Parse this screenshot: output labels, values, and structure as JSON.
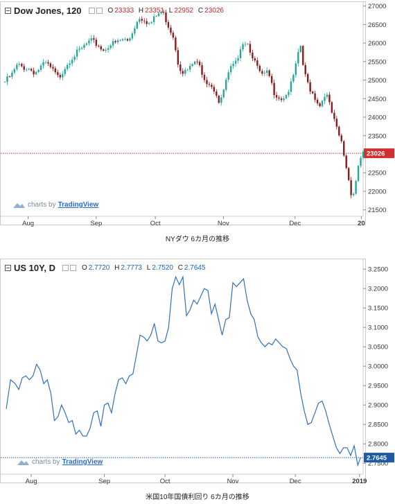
{
  "charts": [
    {
      "symbol": "Dow Jones, 120",
      "ohlc": {
        "o_label": "O",
        "o": "23333",
        "h_label": "H",
        "h": "23351",
        "l_label": "L",
        "l": "22952",
        "c_label": "C",
        "c": "23026"
      },
      "ohlc_color": "#c62828",
      "watermark": {
        "prefix": "charts by",
        "brand": "TradingView"
      },
      "caption": "NYダウ 6カ月の推移"
    },
    {
      "symbol": "US 10Y, D",
      "ohlc": {
        "o_label": "O",
        "o": "2.7720",
        "h_label": "H",
        "h": "2.7773",
        "l_label": "L",
        "l": "2.7520",
        "c_label": "C",
        "c": "2.7645"
      },
      "ohlc_color": "#1565c0",
      "watermark": {
        "prefix": "charts by",
        "brand": "TradingView"
      },
      "caption": "米国10年国債利回り 6カ月の推移"
    }
  ],
  "chart_data": [
    {
      "type": "candlestick",
      "title": "Dow Jones, 120",
      "ylim": [
        21400,
        27200
      ],
      "yticks": [
        "27000",
        "26500",
        "26000",
        "25500",
        "25000",
        "24500",
        "24000",
        "23500",
        "23000",
        "22500",
        "22000",
        "21500"
      ],
      "ytick_values": [
        27000,
        26500,
        26000,
        25500,
        25000,
        24500,
        24000,
        23500,
        23000,
        22500,
        22000,
        21500
      ],
      "xticks": [
        "Aug",
        "Sep",
        "Oct",
        "Nov",
        "Dec",
        "20"
      ],
      "xtick_positions": [
        0.065,
        0.255,
        0.42,
        0.61,
        0.81,
        0.995
      ],
      "last_price": 23026,
      "last_price_label": "23026",
      "up_color": "#26a69a",
      "down_color": "#8b1a1a",
      "series": [
        {
          "t": 0.0,
          "v": 24950
        },
        {
          "t": 0.02,
          "v": 25150
        },
        {
          "t": 0.035,
          "v": 25400
        },
        {
          "t": 0.05,
          "v": 25350
        },
        {
          "t": 0.07,
          "v": 25300
        },
        {
          "t": 0.085,
          "v": 25200
        },
        {
          "t": 0.1,
          "v": 25350
        },
        {
          "t": 0.115,
          "v": 25450
        },
        {
          "t": 0.13,
          "v": 25300
        },
        {
          "t": 0.15,
          "v": 25050
        },
        {
          "t": 0.17,
          "v": 25400
        },
        {
          "t": 0.19,
          "v": 25650
        },
        {
          "t": 0.21,
          "v": 25800
        },
        {
          "t": 0.225,
          "v": 25950
        },
        {
          "t": 0.24,
          "v": 26050
        },
        {
          "t": 0.26,
          "v": 25950
        },
        {
          "t": 0.275,
          "v": 25800
        },
        {
          "t": 0.29,
          "v": 25950
        },
        {
          "t": 0.31,
          "v": 26000
        },
        {
          "t": 0.33,
          "v": 26100
        },
        {
          "t": 0.345,
          "v": 26050
        },
        {
          "t": 0.36,
          "v": 26400
        },
        {
          "t": 0.375,
          "v": 26700
        },
        {
          "t": 0.39,
          "v": 26650
        },
        {
          "t": 0.405,
          "v": 26500
        },
        {
          "t": 0.42,
          "v": 26700
        },
        {
          "t": 0.435,
          "v": 26850
        },
        {
          "t": 0.445,
          "v": 26750
        },
        {
          "t": 0.455,
          "v": 26500
        },
        {
          "t": 0.47,
          "v": 26200
        },
        {
          "t": 0.485,
          "v": 25400
        },
        {
          "t": 0.5,
          "v": 25200
        },
        {
          "t": 0.515,
          "v": 25300
        },
        {
          "t": 0.53,
          "v": 25500
        },
        {
          "t": 0.545,
          "v": 25350
        },
        {
          "t": 0.56,
          "v": 25000
        },
        {
          "t": 0.575,
          "v": 24900
        },
        {
          "t": 0.59,
          "v": 24650
        },
        {
          "t": 0.6,
          "v": 24300
        },
        {
          "t": 0.615,
          "v": 24900
        },
        {
          "t": 0.63,
          "v": 25300
        },
        {
          "t": 0.645,
          "v": 25450
        },
        {
          "t": 0.66,
          "v": 26000
        },
        {
          "t": 0.675,
          "v": 26050
        },
        {
          "t": 0.69,
          "v": 25700
        },
        {
          "t": 0.705,
          "v": 25300
        },
        {
          "t": 0.72,
          "v": 25100
        },
        {
          "t": 0.735,
          "v": 25200
        },
        {
          "t": 0.75,
          "v": 24700
        },
        {
          "t": 0.77,
          "v": 24500
        },
        {
          "t": 0.785,
          "v": 24600
        },
        {
          "t": 0.8,
          "v": 24900
        },
        {
          "t": 0.815,
          "v": 25500
        },
        {
          "t": 0.825,
          "v": 25950
        },
        {
          "t": 0.835,
          "v": 25200
        },
        {
          "t": 0.85,
          "v": 24800
        },
        {
          "t": 0.865,
          "v": 24550
        },
        {
          "t": 0.88,
          "v": 24300
        },
        {
          "t": 0.895,
          "v": 24700
        },
        {
          "t": 0.91,
          "v": 24200
        },
        {
          "t": 0.925,
          "v": 23700
        },
        {
          "t": 0.94,
          "v": 23300
        },
        {
          "t": 0.95,
          "v": 22800
        },
        {
          "t": 0.96,
          "v": 22300
        },
        {
          "t": 0.97,
          "v": 21800
        },
        {
          "t": 0.98,
          "v": 22300
        },
        {
          "t": 0.99,
          "v": 22900
        },
        {
          "t": 1.0,
          "v": 23026
        }
      ]
    },
    {
      "type": "line",
      "title": "US 10Y, D",
      "ylim": [
        2.72,
        3.27
      ],
      "yticks": [
        "3.2500",
        "3.2000",
        "3.1500",
        "3.1000",
        "3.0500",
        "3.0000",
        "2.9500",
        "2.9000",
        "2.8500",
        "2.8000",
        "2.7500"
      ],
      "ytick_values": [
        3.25,
        3.2,
        3.15,
        3.1,
        3.05,
        3.0,
        2.95,
        2.9,
        2.85,
        2.8,
        2.75
      ],
      "xticks": [
        "Aug",
        "Sep",
        "Oct",
        "Nov",
        "Dec",
        "2019"
      ],
      "xtick_positions": [
        0.07,
        0.275,
        0.445,
        0.635,
        0.81,
        0.99
      ],
      "last_price": 2.7645,
      "last_price_label": "2.7645",
      "line_color": "#2f6fc0",
      "series": [
        {
          "t": 0.0,
          "v": 2.89
        },
        {
          "t": 0.012,
          "v": 2.965
        },
        {
          "t": 0.025,
          "v": 2.955
        },
        {
          "t": 0.035,
          "v": 2.94
        },
        {
          "t": 0.045,
          "v": 2.97
        },
        {
          "t": 0.055,
          "v": 2.975
        },
        {
          "t": 0.065,
          "v": 2.965
        },
        {
          "t": 0.075,
          "v": 2.975
        },
        {
          "t": 0.085,
          "v": 3.005
        },
        {
          "t": 0.095,
          "v": 2.99
        },
        {
          "t": 0.105,
          "v": 2.955
        },
        {
          "t": 0.115,
          "v": 2.965
        },
        {
          "t": 0.125,
          "v": 2.93
        },
        {
          "t": 0.135,
          "v": 2.86
        },
        {
          "t": 0.145,
          "v": 2.87
        },
        {
          "t": 0.155,
          "v": 2.9
        },
        {
          "t": 0.165,
          "v": 2.88
        },
        {
          "t": 0.175,
          "v": 2.855
        },
        {
          "t": 0.185,
          "v": 2.86
        },
        {
          "t": 0.195,
          "v": 2.825
        },
        {
          "t": 0.205,
          "v": 2.835
        },
        {
          "t": 0.215,
          "v": 2.82
        },
        {
          "t": 0.225,
          "v": 2.82
        },
        {
          "t": 0.235,
          "v": 2.84
        },
        {
          "t": 0.245,
          "v": 2.88
        },
        {
          "t": 0.255,
          "v": 2.885
        },
        {
          "t": 0.265,
          "v": 2.845
        },
        {
          "t": 0.275,
          "v": 2.9
        },
        {
          "t": 0.285,
          "v": 2.905
        },
        {
          "t": 0.295,
          "v": 2.88
        },
        {
          "t": 0.305,
          "v": 2.93
        },
        {
          "t": 0.315,
          "v": 2.965
        },
        {
          "t": 0.325,
          "v": 2.97
        },
        {
          "t": 0.335,
          "v": 2.955
        },
        {
          "t": 0.345,
          "v": 2.975
        },
        {
          "t": 0.355,
          "v": 2.98
        },
        {
          "t": 0.365,
          "v": 3.03
        },
        {
          "t": 0.375,
          "v": 3.08
        },
        {
          "t": 0.385,
          "v": 3.075
        },
        {
          "t": 0.395,
          "v": 3.065
        },
        {
          "t": 0.405,
          "v": 3.08
        },
        {
          "t": 0.415,
          "v": 3.11
        },
        {
          "t": 0.425,
          "v": 3.065
        },
        {
          "t": 0.435,
          "v": 3.06
        },
        {
          "t": 0.445,
          "v": 3.065
        },
        {
          "t": 0.455,
          "v": 3.1
        },
        {
          "t": 0.465,
          "v": 3.2
        },
        {
          "t": 0.475,
          "v": 3.23
        },
        {
          "t": 0.485,
          "v": 3.21
        },
        {
          "t": 0.495,
          "v": 3.23
        },
        {
          "t": 0.505,
          "v": 3.13
        },
        {
          "t": 0.515,
          "v": 3.145
        },
        {
          "t": 0.525,
          "v": 3.17
        },
        {
          "t": 0.535,
          "v": 3.16
        },
        {
          "t": 0.545,
          "v": 3.18
        },
        {
          "t": 0.555,
          "v": 3.2
        },
        {
          "t": 0.565,
          "v": 3.195
        },
        {
          "t": 0.575,
          "v": 3.135
        },
        {
          "t": 0.585,
          "v": 3.16
        },
        {
          "t": 0.595,
          "v": 3.12
        },
        {
          "t": 0.605,
          "v": 3.08
        },
        {
          "t": 0.615,
          "v": 3.12
        },
        {
          "t": 0.625,
          "v": 3.125
        },
        {
          "t": 0.635,
          "v": 3.215
        },
        {
          "t": 0.645,
          "v": 3.205
        },
        {
          "t": 0.655,
          "v": 3.215
        },
        {
          "t": 0.665,
          "v": 3.225
        },
        {
          "t": 0.675,
          "v": 3.17
        },
        {
          "t": 0.685,
          "v": 3.135
        },
        {
          "t": 0.695,
          "v": 3.12
        },
        {
          "t": 0.705,
          "v": 3.075
        },
        {
          "t": 0.715,
          "v": 3.06
        },
        {
          "t": 0.725,
          "v": 3.05
        },
        {
          "t": 0.735,
          "v": 3.06
        },
        {
          "t": 0.745,
          "v": 3.055
        },
        {
          "t": 0.755,
          "v": 3.07
        },
        {
          "t": 0.765,
          "v": 3.06
        },
        {
          "t": 0.775,
          "v": 3.05
        },
        {
          "t": 0.785,
          "v": 3.045
        },
        {
          "t": 0.795,
          "v": 3.02
        },
        {
          "t": 0.805,
          "v": 3.0
        },
        {
          "t": 0.815,
          "v": 2.99
        },
        {
          "t": 0.825,
          "v": 2.93
        },
        {
          "t": 0.835,
          "v": 2.885
        },
        {
          "t": 0.845,
          "v": 2.85
        },
        {
          "t": 0.855,
          "v": 2.855
        },
        {
          "t": 0.865,
          "v": 2.88
        },
        {
          "t": 0.875,
          "v": 2.905
        },
        {
          "t": 0.885,
          "v": 2.91
        },
        {
          "t": 0.895,
          "v": 2.885
        },
        {
          "t": 0.905,
          "v": 2.85
        },
        {
          "t": 0.915,
          "v": 2.82
        },
        {
          "t": 0.925,
          "v": 2.79
        },
        {
          "t": 0.935,
          "v": 2.775
        },
        {
          "t": 0.945,
          "v": 2.79
        },
        {
          "t": 0.955,
          "v": 2.79
        },
        {
          "t": 0.965,
          "v": 2.77
        },
        {
          "t": 0.975,
          "v": 2.795
        },
        {
          "t": 0.985,
          "v": 2.745
        },
        {
          "t": 0.993,
          "v": 2.765
        }
      ]
    }
  ]
}
